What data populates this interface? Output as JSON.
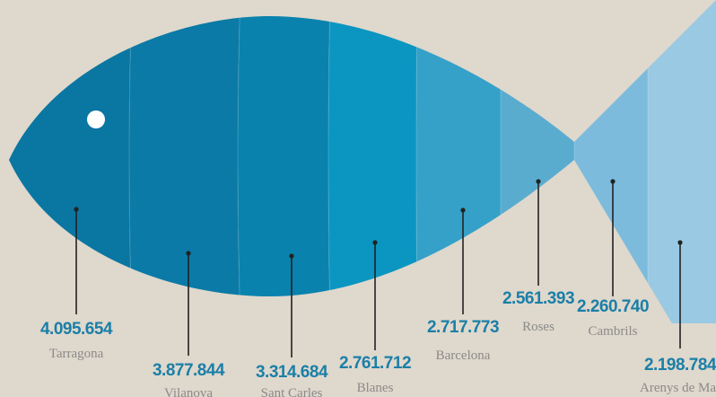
{
  "chart_data": {
    "type": "bar",
    "categories": [
      "Tarragona",
      "Vilanova",
      "Sant Carles",
      "Blanes",
      "Barcelona",
      "Roses",
      "Cambrils",
      "Arenys de Mar"
    ],
    "values": [
      4095654,
      3877844,
      3314684,
      2761712,
      2717773,
      2561393,
      2260740,
      2198784
    ],
    "value_labels": [
      "4.095.654",
      "3.877.844",
      "3.314.684",
      "2.761.712",
      "2.717.773",
      "2.561.393",
      "2.260.740",
      "2.198.784"
    ],
    "segment_colors": [
      "#0a76a2",
      "#0b7aa7",
      "#0982ae",
      "#0b96c2",
      "#35a1c9",
      "#5aaccf",
      "#7cbbdc",
      "#9ac9e3"
    ],
    "background": "#dfd8cc",
    "value_color": "#1a7fa8",
    "label_color": "#8a8a8a",
    "eye_color": "#ffffff"
  }
}
